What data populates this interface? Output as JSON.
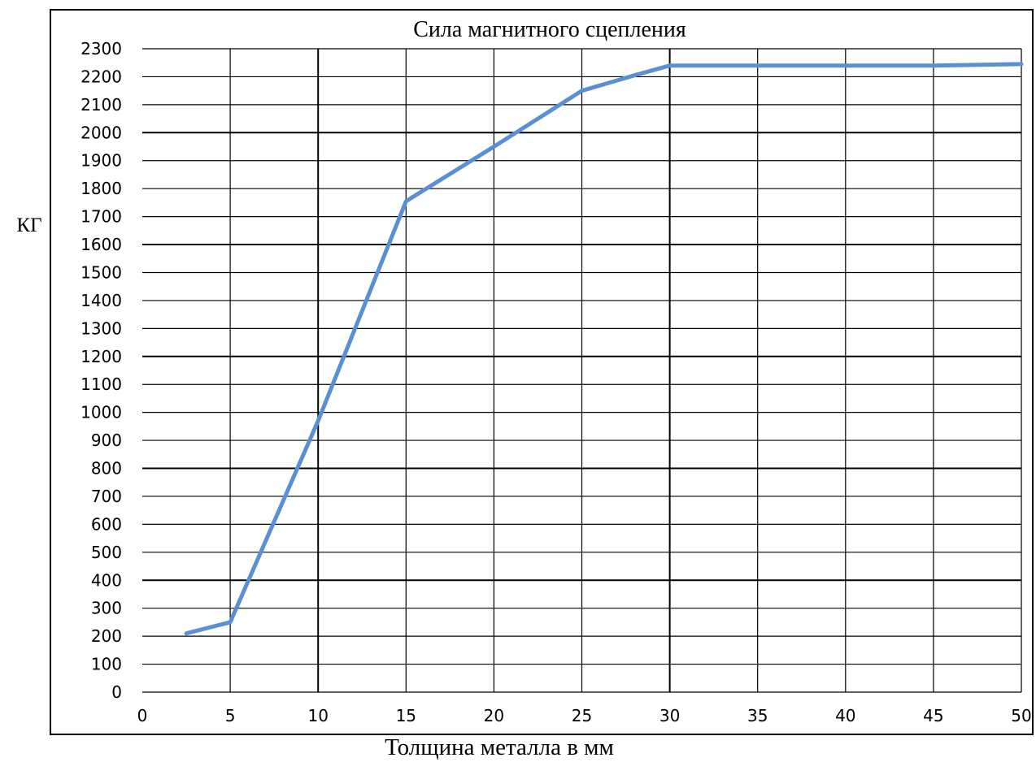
{
  "chart_data": {
    "type": "line",
    "title": "Сила магнитного сцепления",
    "xlabel": "Толщина металла в мм",
    "ylabel": "КГ",
    "xlim": [
      0,
      50
    ],
    "ylim": [
      0,
      2300
    ],
    "x_ticks": [
      0,
      5,
      10,
      15,
      20,
      25,
      30,
      35,
      40,
      45,
      50
    ],
    "y_ticks": [
      0,
      100,
      200,
      300,
      400,
      500,
      600,
      700,
      800,
      900,
      1000,
      1100,
      1200,
      1300,
      1400,
      1500,
      1600,
      1700,
      1800,
      1900,
      2000,
      2100,
      2200,
      2300
    ],
    "grid": true,
    "legend": "none",
    "series": [
      {
        "color": "#5b8fd4",
        "x": [
          2.5,
          5,
          10,
          15,
          20,
          25,
          28,
          30,
          35,
          40,
          45,
          50
        ],
        "y": [
          210,
          250,
          970,
          1755,
          1950,
          2150,
          2205,
          2240,
          2240,
          2240,
          2240,
          2245
        ]
      }
    ]
  }
}
